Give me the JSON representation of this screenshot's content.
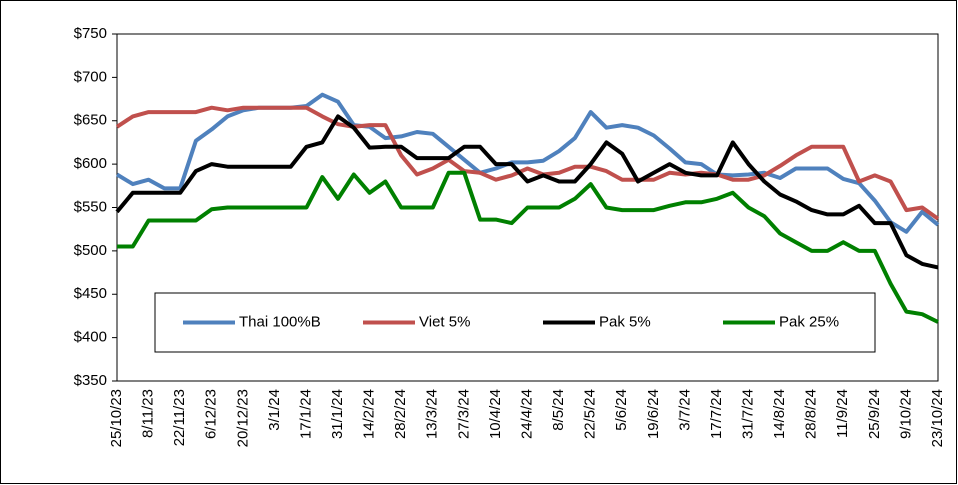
{
  "chart_data": {
    "type": "line",
    "categories": [
      "25/10/23",
      null,
      "8/11/23",
      null,
      "22/11/23",
      null,
      "6/12/23",
      null,
      "20/12/23",
      null,
      "3/1/24",
      null,
      "17/1/24",
      null,
      "31/1/24",
      null,
      "14/2/24",
      null,
      "28/2/24",
      null,
      "13/3/24",
      null,
      "27/3/24",
      null,
      "10/4/24",
      null,
      "24/4/24",
      null,
      "8/5/24",
      null,
      "22/5/24",
      null,
      "5/6/24",
      null,
      "19/6/24",
      null,
      "3/7/24",
      null,
      "17/7/24",
      null,
      "31/7/24",
      null,
      "14/8/24",
      null,
      "28/8/24",
      null,
      "11/9/24",
      null,
      "25/9/24",
      null,
      "9/10/24",
      null,
      "23/10/24"
    ],
    "series": [
      {
        "name": "Thai 100%B",
        "color": "#4f81bd",
        "values": [
          588,
          577,
          582,
          572,
          572,
          627,
          640,
          655,
          662,
          665,
          665,
          665,
          667,
          680,
          672,
          645,
          643,
          630,
          632,
          637,
          635,
          620,
          605,
          590,
          595,
          602,
          602,
          604,
          615,
          630,
          660,
          642,
          645,
          642,
          633,
          618,
          602,
          600,
          588,
          587,
          588,
          590,
          584,
          595,
          595,
          595,
          583,
          578,
          558,
          533,
          522,
          545,
          530
        ]
      },
      {
        "name": "Viet 5%",
        "color": "#c0504d",
        "values": [
          643,
          655,
          660,
          660,
          660,
          660,
          665,
          662,
          665,
          665,
          665,
          665,
          665,
          655,
          646,
          643,
          645,
          645,
          610,
          588,
          595,
          605,
          592,
          590,
          582,
          587,
          595,
          588,
          590,
          597,
          597,
          592,
          582,
          582,
          582,
          590,
          588,
          590,
          588,
          582,
          582,
          587,
          598,
          610,
          620,
          620,
          620,
          580,
          587,
          580,
          547,
          550,
          537
        ]
      },
      {
        "name": "Pak 5%",
        "color": "#000000",
        "values": [
          545,
          567,
          567,
          567,
          567,
          592,
          600,
          597,
          597,
          597,
          597,
          597,
          620,
          625,
          655,
          642,
          619,
          620,
          620,
          607,
          607,
          607,
          620,
          620,
          600,
          600,
          580,
          587,
          580,
          580,
          600,
          625,
          612,
          580,
          590,
          600,
          590,
          587,
          587,
          625,
          600,
          580,
          565,
          557,
          547,
          542,
          542,
          552,
          532,
          532,
          495,
          485,
          481
        ]
      },
      {
        "name": "Pak 25%",
        "color": "#008000",
        "values": [
          505,
          505,
          535,
          535,
          535,
          535,
          548,
          550,
          550,
          550,
          550,
          550,
          550,
          585,
          560,
          588,
          567,
          580,
          550,
          550,
          550,
          590,
          590,
          536,
          536,
          532,
          550,
          550,
          550,
          560,
          577,
          550,
          547,
          547,
          547,
          552,
          556,
          556,
          560,
          567,
          550,
          540,
          520,
          510,
          500,
          500,
          510,
          500,
          500,
          462,
          430,
          427,
          418
        ]
      }
    ],
    "ylim": [
      350,
      750
    ],
    "yticks": [
      {
        "value": 350,
        "label": "$350"
      },
      {
        "value": 400,
        "label": "$400"
      },
      {
        "value": 450,
        "label": "$450"
      },
      {
        "value": 500,
        "label": "$500"
      },
      {
        "value": 550,
        "label": "$550"
      },
      {
        "value": 600,
        "label": "$600"
      },
      {
        "value": 650,
        "label": "$650"
      },
      {
        "value": 700,
        "label": "$700"
      },
      {
        "value": 750,
        "label": "$750"
      }
    ],
    "grid": false,
    "legend": "bottom"
  }
}
